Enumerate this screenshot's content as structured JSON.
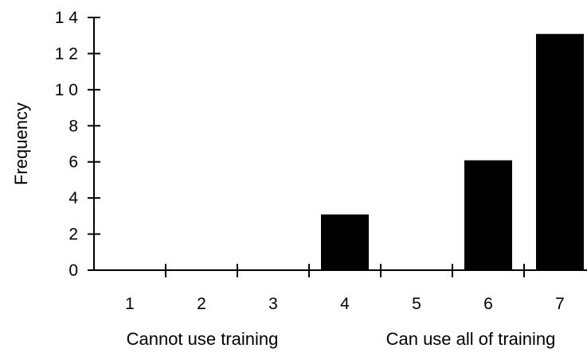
{
  "chart_data": {
    "type": "bar",
    "title": "",
    "xlabel": "",
    "ylabel": "Frequency",
    "categories": [
      "1",
      "2",
      "3",
      "4",
      "5",
      "6",
      "7"
    ],
    "values": [
      0,
      0,
      0,
      3,
      0,
      6,
      13
    ],
    "ylim": [
      0,
      14
    ],
    "yticks": [
      "0",
      "2",
      "4",
      "6",
      "8",
      "1 0",
      "1 2",
      "1 4"
    ],
    "bar_color": "#000000",
    "grid": false,
    "annotations": {
      "left": "Cannot use training",
      "right": "Can use all of training"
    }
  }
}
